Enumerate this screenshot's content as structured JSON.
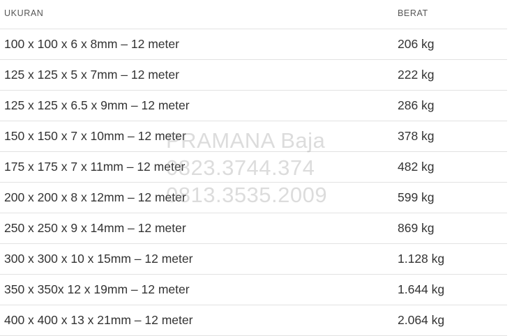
{
  "table": {
    "headers": {
      "size": "UKURAN",
      "weight": "BERAT"
    },
    "rows": [
      {
        "size": "100 x 100 x 6 x 8mm – 12 meter",
        "weight": "206 kg"
      },
      {
        "size": "125 x 125 x 5 x 7mm – 12 meter",
        "weight": "222 kg"
      },
      {
        "size": "125 x 125 x 6.5 x 9mm – 12 meter",
        "weight": "286 kg"
      },
      {
        "size": "150 x 150 x 7 x 10mm – 12 meter",
        "weight": "378 kg"
      },
      {
        "size": "175 x 175 x 7 x 11mm – 12 meter",
        "weight": "482 kg"
      },
      {
        "size": "200 x 200 x 8 x 12mm – 12 meter",
        "weight": "599 kg"
      },
      {
        "size": "250 x 250 x 9 x 14mm – 12 meter",
        "weight": "869 kg"
      },
      {
        "size": "300 x 300 x 10 x 15mm – 12 meter",
        "weight": "1.128 kg"
      },
      {
        "size": "350 x 350x 12 x 19mm – 12 meter",
        "weight": "1.644 kg"
      },
      {
        "size": "400 x 400 x 13 x 21mm – 12 meter",
        "weight": "2.064 kg"
      }
    ]
  },
  "watermark": {
    "line1": "PRAMANA Baja",
    "line2": "0823.3744.374",
    "line3": "0813.3535.2009"
  }
}
